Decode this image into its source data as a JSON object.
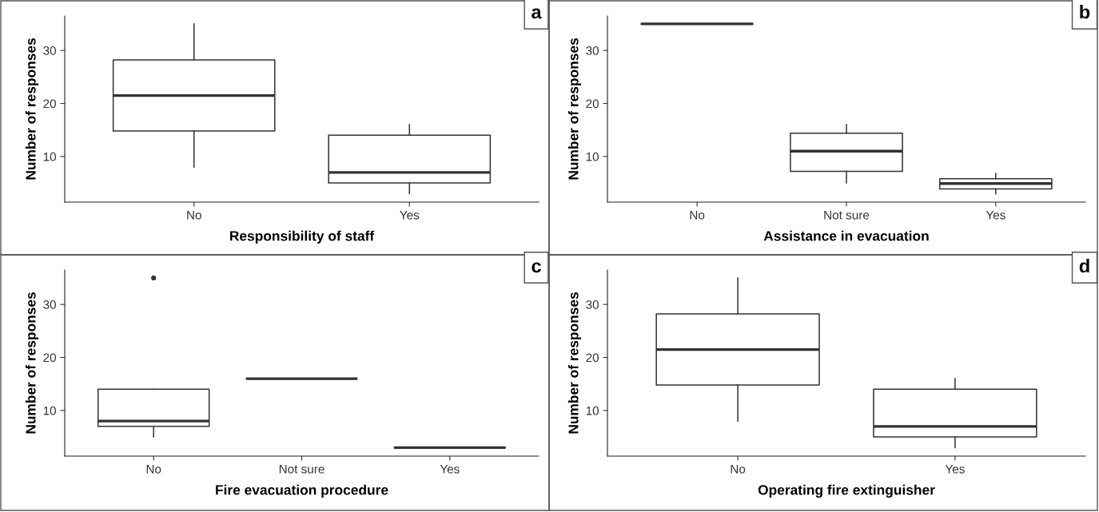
{
  "chart_data": [
    {
      "type": "box",
      "title": "a",
      "xlabel": "Responsibility of staff",
      "ylabel": "Number of responses",
      "categories": [
        "No",
        "Yes"
      ],
      "ylim": [
        1.4,
        36.5
      ],
      "yticks": [
        10,
        20,
        30
      ],
      "boxes": [
        {
          "low": 8,
          "q1": 14.8,
          "median": 21.5,
          "q3": 28.2,
          "high": 35
        },
        {
          "low": 3,
          "q1": 5,
          "median": 7,
          "q3": 14,
          "high": 16
        }
      ]
    },
    {
      "type": "box",
      "title": "b",
      "xlabel": "Assistance in evacuation",
      "ylabel": "Number of responses",
      "categories": [
        "No",
        "Not sure",
        "Yes"
      ],
      "ylim": [
        1.4,
        36.5
      ],
      "yticks": [
        10,
        20,
        30
      ],
      "boxes": [
        {
          "low": 35,
          "q1": 35,
          "median": 35,
          "q3": 35,
          "high": 35
        },
        {
          "low": 5,
          "q1": 7.2,
          "median": 11,
          "q3": 14.4,
          "high": 16
        },
        {
          "low": 3,
          "q1": 3.9,
          "median": 4.9,
          "q3": 5.8,
          "high": 6.8
        }
      ]
    },
    {
      "type": "box",
      "title": "c",
      "xlabel": "Fire evacuation procedure",
      "ylabel": "Number of responses",
      "categories": [
        "No",
        "Not sure",
        "Yes"
      ],
      "ylim": [
        1.4,
        36.5
      ],
      "yticks": [
        10,
        20,
        30
      ],
      "boxes": [
        {
          "low": 5,
          "q1": 7,
          "median": 8,
          "q3": 14,
          "high": 14,
          "outliers": [
            35
          ]
        },
        {
          "low": 16,
          "q1": 16,
          "median": 16,
          "q3": 16,
          "high": 16
        },
        {
          "low": 3,
          "q1": 3,
          "median": 3,
          "q3": 3,
          "high": 3
        }
      ]
    },
    {
      "type": "box",
      "title": "d",
      "xlabel": "Operating fire extinguisher",
      "ylabel": "Number of responses",
      "categories": [
        "No",
        "Yes"
      ],
      "ylim": [
        1.4,
        36.5
      ],
      "yticks": [
        10,
        20,
        30
      ],
      "boxes": [
        {
          "low": 8,
          "q1": 14.8,
          "median": 21.5,
          "q3": 28.2,
          "high": 35
        },
        {
          "low": 3,
          "q1": 5,
          "median": 7,
          "q3": 14,
          "high": 16
        }
      ]
    }
  ]
}
